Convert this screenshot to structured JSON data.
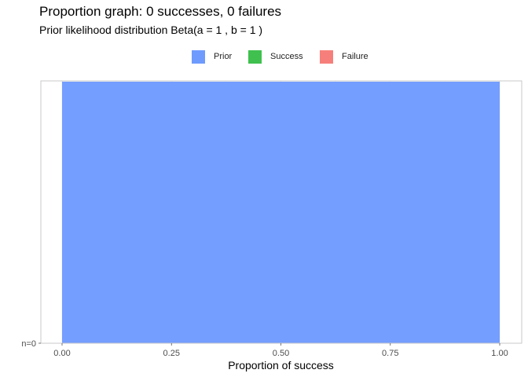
{
  "chart_data": {
    "type": "bar",
    "title": "Proportion graph: 0 successes, 0 failures",
    "subtitle": "Prior likelihood distribution Beta(a = 1 , b = 1 )",
    "xlabel": "Proportion of success",
    "ylabel": "",
    "xlim": [
      0,
      1
    ],
    "x_ticks": [
      "0.00",
      "0.25",
      "0.50",
      "0.75",
      "1.00"
    ],
    "x_tick_values": [
      0,
      0.25,
      0.5,
      0.75,
      1
    ],
    "y_tick_labels": [
      "n=0"
    ],
    "legend_position": "top",
    "grid": true,
    "legend": [
      {
        "name": "Prior",
        "color": "#6f9bff"
      },
      {
        "name": "Success",
        "color": "#3fc04f"
      },
      {
        "name": "Failure",
        "color": "#f77f7b"
      }
    ],
    "series": [
      {
        "name": "Prior",
        "color": "#6f9bff",
        "x_start": 0,
        "x_end": 1,
        "row": "n=0"
      }
    ]
  }
}
